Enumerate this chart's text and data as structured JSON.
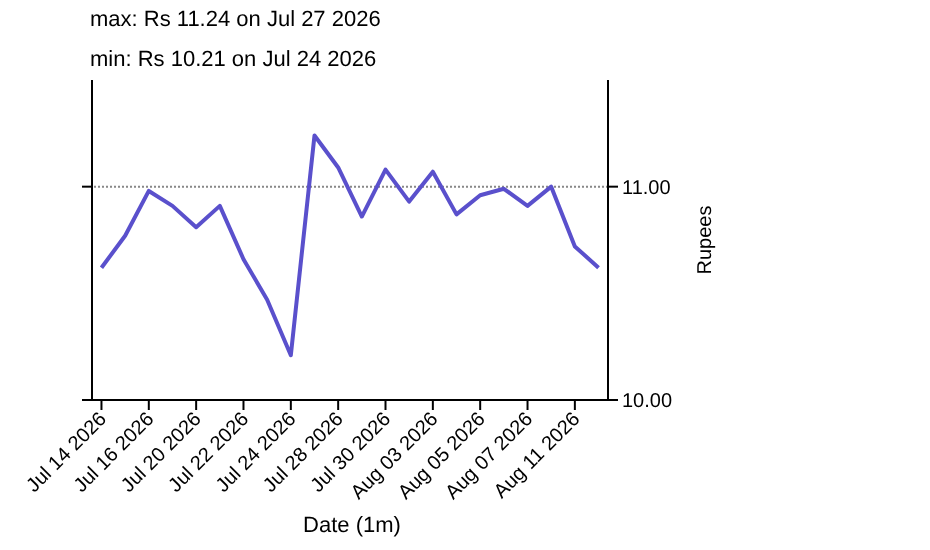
{
  "chart_data": {
    "type": "line",
    "title": "max: Rs 11.24 on Jul 27 2026",
    "subtitle": "min: Rs 10.21 on Jul 24 2026",
    "xlabel": "Date (1m)",
    "ylabel": "Rupees",
    "categories": [
      "Jul 14 2026",
      null,
      "Jul 16 2026",
      null,
      "Jul 20 2026",
      null,
      "Jul 22 2026",
      null,
      "Jul 24 2026",
      null,
      "Jul 28 2026",
      null,
      "Jul 30 2026",
      null,
      "Aug 03 2026",
      null,
      "Aug 05 2026",
      null,
      "Aug 07 2026",
      null,
      "Aug 11 2026",
      null
    ],
    "series": [
      {
        "color": "#5a50cc",
        "values": [
          10.62,
          10.77,
          10.98,
          10.91,
          10.81,
          10.91,
          10.66,
          10.47,
          10.21,
          11.24,
          11.09,
          10.86,
          11.08,
          10.93,
          11.07,
          10.87,
          10.96,
          10.99,
          10.91,
          11.0,
          10.72,
          10.62
        ]
      }
    ],
    "ylim": [
      10.0,
      11.5
    ],
    "yticks": [
      {
        "value": 10,
        "label": "10.00"
      },
      {
        "value": 11,
        "label": "11.00"
      }
    ],
    "grid": "y",
    "marker": "none",
    "line_style": "solid"
  }
}
